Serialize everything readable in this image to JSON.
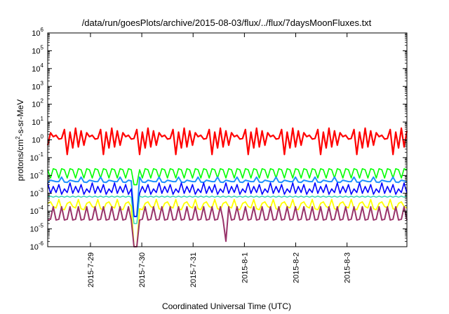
{
  "chart_data": {
    "type": "line",
    "title": "/data/run/goesPlots/archive/2015-08-03/flux/../flux/7daysMoonFluxes.txt",
    "xlabel": "Coordinated Universal Time (UTC)",
    "ylabel_parts": {
      "base": "protons/cm",
      "sup": "2",
      "rest": "-s-sr-MeV"
    },
    "y_scale": "log",
    "ylim": [
      1e-06,
      1000000.0
    ],
    "y_ticks": [
      {
        "base": "10",
        "exp": "-6"
      },
      {
        "base": "10",
        "exp": "-5"
      },
      {
        "base": "10",
        "exp": "-4"
      },
      {
        "base": "10",
        "exp": "-3"
      },
      {
        "base": "10",
        "exp": "-2"
      },
      {
        "base": "10",
        "exp": "-1"
      },
      {
        "base": "10",
        "exp": "0"
      },
      {
        "base": "10",
        "exp": "1"
      },
      {
        "base": "10",
        "exp": "2"
      },
      {
        "base": "10",
        "exp": "3"
      },
      {
        "base": "10",
        "exp": "4"
      },
      {
        "base": "10",
        "exp": "5"
      },
      {
        "base": "10",
        "exp": "6"
      }
    ],
    "xlim": [
      "2015-07-28 04:00",
      "2015-08-04 04:00"
    ],
    "x_ticks": [
      {
        "label": "2015-7-29",
        "t": "2015-07-29 00:00"
      },
      {
        "label": "2015-7-30",
        "t": "2015-07-30 00:00"
      },
      {
        "label": "2015-7-31",
        "t": "2015-07-31 00:00"
      },
      {
        "label": "2015-8-1",
        "t": "2015-08-01 00:00"
      },
      {
        "label": "2015-8-2",
        "t": "2015-08-02 00:00"
      },
      {
        "label": "2015-8-3",
        "t": "2015-08-03 00:00"
      }
    ],
    "series": [
      {
        "color": "#ff0000",
        "width": 2.2,
        "base": 1.0,
        "pattern": [
          0.5,
          0.35,
          1.2,
          2.5,
          4.5,
          3.8,
          1.5,
          0.4,
          0.15,
          1.8,
          3.2,
          2.7,
          1.1
        ],
        "dips": [],
        "peaks": []
      },
      {
        "color": "#00ff00",
        "width": 1.6,
        "base": 0.006,
        "pattern": [
          1,
          3.5,
          0.8,
          6,
          1.2,
          2.5,
          0.7,
          4,
          1.5
        ],
        "dips": [
          {
            "t": "2015-07-29 21:00",
            "v": 0.003
          }
        ],
        "peaks": []
      },
      {
        "color": "#1e90ff",
        "width": 2.0,
        "base": 0.0045,
        "pattern": [
          1,
          1.1,
          0.9,
          1.8,
          1,
          1.2,
          0.95
        ],
        "dips": [
          {
            "t": "2015-07-29 21:00",
            "v": 5e-05
          }
        ],
        "peaks": []
      },
      {
        "color": "#0000ff",
        "width": 1.6,
        "base": 0.0011,
        "pattern": [
          1,
          2.2,
          0.8,
          3.5,
          1,
          1.6,
          0.9,
          2.8
        ],
        "dips": [
          {
            "t": "2015-07-29 21:00",
            "v": 5e-05
          }
        ],
        "peaks": []
      },
      {
        "color": "#2fd6b0",
        "width": 1.4,
        "base": 0.0006,
        "pattern": [
          1,
          1.15,
          0.9,
          1.1,
          1,
          1.3
        ],
        "dips": [
          {
            "t": "2015-07-29 21:00",
            "v": 2e-05
          }
        ],
        "peaks": []
      },
      {
        "color": "#ffff00",
        "width": 1.8,
        "base": 0.00015,
        "pattern": [
          1,
          2.2,
          0.8,
          3,
          1.2,
          1.8,
          0.9
        ],
        "dips": [
          {
            "t": "2015-07-29 21:00",
            "v": 1e-06
          }
        ],
        "peaks": []
      },
      {
        "color": "#99336a",
        "width": 2.0,
        "base": 3.5e-05,
        "pattern": [
          1,
          4,
          0.8,
          5,
          1.2,
          2.5,
          0.9,
          6,
          1
        ],
        "dips": [
          {
            "t": "2015-07-29 21:00",
            "v": 8e-07
          },
          {
            "t": "2015-07-31 15:00",
            "v": 2e-06
          }
        ],
        "peaks": []
      }
    ]
  }
}
